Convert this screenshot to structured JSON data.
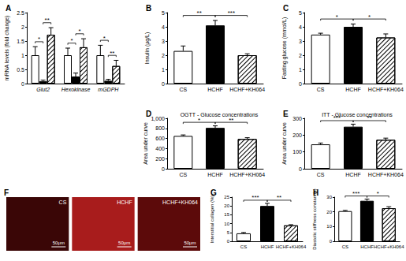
{
  "chart_data": [
    {
      "type": "bar",
      "title": "A",
      "y_label": "mRNA levels (fold change)",
      "categories": [
        "Glut2",
        "Hexokinase",
        "mGDPH"
      ],
      "series": [
        {
          "name": "CS",
          "color": "#ffffff",
          "values": [
            1.0,
            1.0,
            1.0
          ],
          "errors": [
            0.3,
            0.25,
            0.35
          ]
        },
        {
          "name": "HCHF",
          "color": "#000000",
          "values": [
            0.08,
            0.25,
            0.1
          ],
          "errors": [
            0.04,
            0.12,
            0.05
          ]
        },
        {
          "name": "HCHF+KH064",
          "color": "#ffffff",
          "values": [
            1.72,
            1.28,
            0.62
          ],
          "errors": [
            0.25,
            0.3,
            0.2
          ]
        }
      ],
      "ylim": [
        0,
        2.5
      ],
      "yticks": [
        0,
        0.5,
        1,
        1.5,
        2,
        2.5
      ],
      "grid": false,
      "significance": [
        {
          "category": 0,
          "from": 0,
          "to": 1,
          "label": "*"
        },
        {
          "category": 0,
          "from": 1,
          "to": 2,
          "label": "**"
        },
        {
          "category": 1,
          "from": 0,
          "to": 1,
          "label": "*"
        },
        {
          "category": 1,
          "from": 1,
          "to": 2,
          "label": "*"
        },
        {
          "category": 2,
          "from": 0,
          "to": 1,
          "label": "*"
        },
        {
          "category": 2,
          "from": 1,
          "to": 2,
          "label": "**"
        }
      ]
    },
    {
      "type": "bar",
      "title": "B",
      "y_label": "Insulin (μg/L)",
      "categories": [
        "CS",
        "HCHF",
        "HCHF+KH064"
      ],
      "values": [
        2.3,
        4.1,
        2.0
      ],
      "errors": [
        0.35,
        0.35,
        0.1
      ],
      "colors": [
        "#ffffff",
        "#000000",
        "#ffffff"
      ],
      "ylim": [
        0,
        5
      ],
      "yticks": [
        0,
        1,
        2,
        3,
        4,
        5
      ],
      "grid": false,
      "significance": [
        {
          "from": 0,
          "to": 1,
          "label": "**"
        },
        {
          "from": 1,
          "to": 2,
          "label": "***"
        }
      ]
    },
    {
      "type": "bar",
      "title": "C",
      "y_label": "Fasting glucose (mmol/L)",
      "categories": [
        "CS",
        "HCHF",
        "HCHF+KH064"
      ],
      "values": [
        3.45,
        4.0,
        3.25
      ],
      "errors": [
        0.1,
        0.2,
        0.25
      ],
      "colors": [
        "#ffffff",
        "#000000",
        "#ffffff"
      ],
      "ylim": [
        0,
        5
      ],
      "yticks": [
        0,
        1,
        2,
        3,
        4,
        5
      ],
      "grid": false,
      "significance": [
        {
          "from": 0,
          "to": 1,
          "label": "*"
        },
        {
          "from": 1,
          "to": 2,
          "label": "*"
        }
      ]
    },
    {
      "type": "bar",
      "title": "D",
      "subtitle": "OGTT - Glucose concentrations",
      "y_label": "Area under curve",
      "categories": [
        "CS",
        "HCHF",
        "HCHF+KH064"
      ],
      "values": [
        650,
        810,
        590
      ],
      "errors": [
        20,
        40,
        25
      ],
      "colors": [
        "#ffffff",
        "#000000",
        "#ffffff"
      ],
      "ylim": [
        0,
        1000
      ],
      "yticks": [
        0,
        200,
        400,
        600,
        800,
        1000
      ],
      "grid": false,
      "significance": [
        {
          "from": 0,
          "to": 1,
          "label": "*"
        },
        {
          "from": 1,
          "to": 2,
          "label": "**"
        }
      ]
    },
    {
      "type": "bar",
      "title": "E",
      "subtitle": "ITT - Glucose concentrations",
      "y_label": "Area under curve",
      "categories": [
        "CS",
        "HCHF",
        "HCHF+KH064"
      ],
      "values": [
        145,
        250,
        172
      ],
      "errors": [
        8,
        15,
        10
      ],
      "colors": [
        "#ffffff",
        "#000000",
        "#ffffff"
      ],
      "ylim": [
        0,
        300
      ],
      "yticks": [
        0,
        100,
        200,
        300
      ],
      "grid": false,
      "significance": [
        {
          "from": 0,
          "to": 1,
          "label": "***"
        },
        {
          "from": 1,
          "to": 2,
          "label": "**"
        }
      ]
    },
    {
      "type": "image",
      "title": "F",
      "panels": [
        {
          "label": "CS",
          "scale_bar": "50μm"
        },
        {
          "label": "HCHF",
          "scale_bar": "50μm"
        },
        {
          "label": "HCHF+KH064",
          "scale_bar": "50μm"
        }
      ]
    },
    {
      "type": "bar",
      "title": "G",
      "y_label": "Interstitial collagen (%)",
      "categories": [
        "CS",
        "HCHF",
        "HCHF+KH064"
      ],
      "values": [
        4.5,
        20,
        9
      ],
      "errors": [
        0.5,
        1.5,
        0.4
      ],
      "colors": [
        "#ffffff",
        "#000000",
        "#ffffff"
      ],
      "ylim": [
        0,
        25
      ],
      "yticks": [
        0,
        5,
        10,
        15,
        20,
        25
      ],
      "grid": false,
      "significance": [
        {
          "from": 0,
          "to": 1,
          "label": "***"
        },
        {
          "from": 1,
          "to": 2,
          "label": "**"
        }
      ]
    },
    {
      "type": "bar",
      "title": "H",
      "y_label": "Diastolic stiffness constant(κ)",
      "categories": [
        "CS",
        "HCHF",
        "HCHF+KH064"
      ],
      "values": [
        20.5,
        27.5,
        22.5
      ],
      "errors": [
        0.5,
        1.2,
        1.0
      ],
      "colors": [
        "#ffffff",
        "#000000",
        "#ffffff"
      ],
      "ylim": [
        0,
        30
      ],
      "yticks": [
        0,
        10,
        20,
        30
      ],
      "grid": false,
      "significance": [
        {
          "from": 0,
          "to": 1,
          "label": "***"
        },
        {
          "from": 1,
          "to": 2,
          "label": "*"
        }
      ]
    }
  ]
}
